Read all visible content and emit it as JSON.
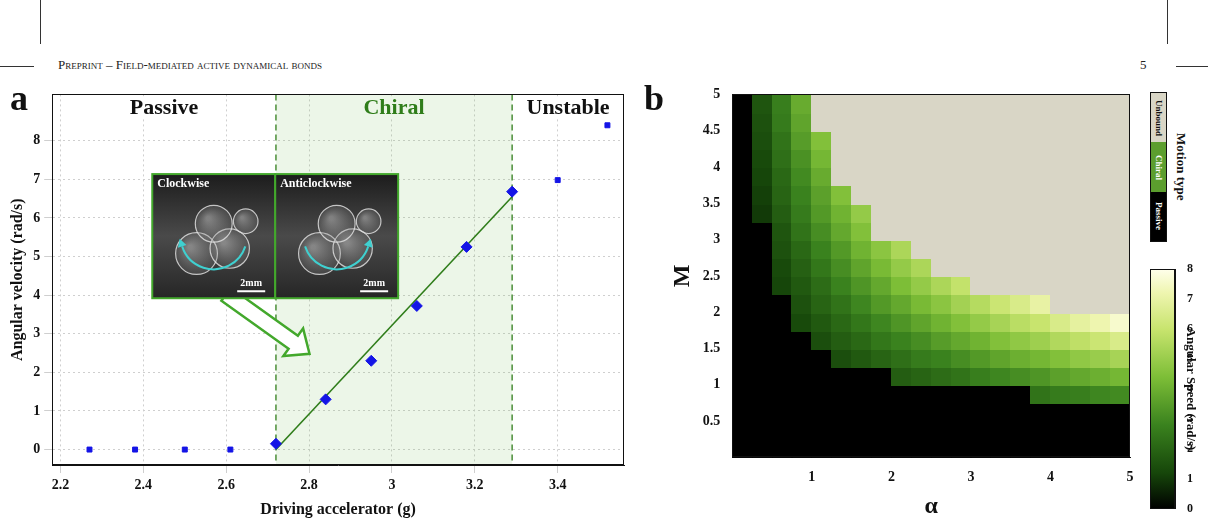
{
  "header": {
    "title": "Preprint – Field-mediated active dynamical bonds",
    "page": 5
  },
  "chart_data": [
    {
      "panel": "a",
      "type": "scatter",
      "x_label": "Driving accelerator (g)",
      "y_label": "Angular velocity (rad/s)",
      "xlim": [
        2.18,
        3.56
      ],
      "xticks": [
        2.2,
        2.4,
        2.6,
        2.8,
        3,
        3.2,
        3.4
      ],
      "ylim": [
        -0.4,
        9.2
      ],
      "yticks": [
        0,
        1,
        2,
        3,
        4,
        5,
        6,
        7,
        8
      ],
      "grid": true,
      "series": [
        {
          "type": "scatter",
          "marker": "square",
          "color": "#1414e6",
          "x": [
            2.27,
            2.38,
            2.5,
            2.61
          ],
          "values": [
            0,
            0,
            0,
            0
          ]
        },
        {
          "type": "scatter",
          "marker": "diamond",
          "color": "#1414e6",
          "x": [
            2.72,
            2.84,
            2.95,
            3.06,
            3.18,
            3.29
          ],
          "values": [
            0.15,
            1.3,
            2.3,
            3.72,
            5.25,
            6.68
          ]
        },
        {
          "type": "scatter",
          "marker": "square",
          "color": "#1414e6",
          "x": [
            3.4,
            3.52
          ],
          "values": [
            6.98,
            8.4
          ]
        },
        {
          "type": "line",
          "color": "#2f7d1a",
          "x": [
            2.72,
            3.29
          ],
          "values": [
            0,
            6.55
          ]
        }
      ],
      "regions": {
        "labels": [
          "Passive",
          "Chiral",
          "Unstable"
        ],
        "bounds": [
          2.72,
          3.29
        ],
        "colors": [
          "#111111",
          "#2f7d1a",
          "#111111"
        ]
      },
      "inset": {
        "panels": [
          {
            "title": "Clockwise",
            "scale": "2mm"
          },
          {
            "title": "Anticlockwise",
            "scale": "2mm"
          }
        ]
      }
    },
    {
      "panel": "b",
      "type": "heatmap",
      "x_label": "α",
      "y_label": "M",
      "xlim": [
        0,
        5
      ],
      "xticks": [
        1,
        2,
        3,
        4,
        5
      ],
      "ylim": [
        0,
        5
      ],
      "yticks": [
        0.5,
        1,
        1.5,
        2,
        2.5,
        3,
        3.5,
        4,
        4.5,
        5
      ],
      "grid": false,
      "x": [
        0.125,
        0.375,
        0.625,
        0.875,
        1.125,
        1.375,
        1.625,
        1.875,
        2.125,
        2.375,
        2.625,
        2.875,
        3.125,
        3.375,
        3.625,
        3.875,
        4.125,
        4.375,
        4.625,
        4.875
      ],
      "y": [
        0.125,
        0.375,
        0.625,
        0.875,
        1.125,
        1.375,
        1.625,
        1.875,
        2.125,
        2.375,
        2.625,
        2.875,
        3.125,
        3.375,
        3.625,
        3.875,
        4.125,
        4.375,
        4.625,
        4.875
      ],
      "cells": [
        [
          0,
          0,
          0,
          0,
          0,
          0,
          0,
          0,
          0,
          0,
          0,
          0,
          0,
          0,
          0,
          0,
          0,
          0,
          0,
          0
        ],
        [
          0,
          0,
          0,
          0,
          0,
          0,
          0,
          0,
          0,
          0,
          0,
          0,
          0,
          0,
          0,
          0,
          0,
          0,
          0,
          0
        ],
        [
          0,
          0,
          0,
          0,
          0,
          0,
          0,
          0,
          0,
          0,
          0,
          0,
          0,
          0,
          0,
          0,
          0,
          0,
          0,
          0
        ],
        [
          0,
          0,
          0,
          0,
          0,
          0,
          0,
          0,
          0,
          0,
          0,
          0,
          0,
          0,
          0,
          2.4,
          2.6,
          2.7,
          2.9,
          3.0
        ],
        [
          0,
          0,
          0,
          0,
          0,
          0,
          0,
          0,
          1.8,
          2.0,
          2.2,
          2.4,
          2.7,
          2.9,
          3.1,
          3.3,
          3.6,
          3.8,
          4.0,
          4.2
        ],
        [
          0,
          0,
          0,
          0,
          0,
          1.4,
          1.7,
          2.0,
          2.3,
          2.6,
          2.8,
          3.1,
          3.4,
          3.7,
          4.0,
          4.2,
          4.5,
          4.8,
          5.0,
          5.3
        ],
        [
          0,
          0,
          0,
          0,
          1.4,
          1.8,
          2.1,
          2.5,
          2.8,
          3.1,
          3.5,
          3.8,
          4.1,
          4.5,
          4.8,
          5.1,
          5.5,
          5.8,
          6.1,
          6.5
        ],
        [
          0,
          0,
          0,
          1.3,
          1.7,
          2.1,
          2.5,
          2.9,
          3.3,
          3.7,
          4.1,
          4.5,
          4.9,
          5.3,
          5.7,
          6.0,
          6.5,
          6.9,
          7.2,
          7.6
        ],
        [
          0,
          0,
          0,
          1.5,
          2.0,
          2.4,
          2.9,
          3.4,
          3.8,
          4.3,
          4.7,
          5.2,
          5.6,
          6.1,
          6.5,
          7.0,
          null,
          null,
          null,
          null
        ],
        [
          0,
          0,
          1.2,
          1.7,
          2.2,
          2.8,
          3.3,
          3.8,
          4.4,
          4.9,
          5.4,
          5.9,
          null,
          null,
          null,
          null,
          null,
          null,
          null,
          null
        ],
        [
          0,
          0,
          1.3,
          1.9,
          2.5,
          3.1,
          3.7,
          4.3,
          4.9,
          5.4,
          null,
          null,
          null,
          null,
          null,
          null,
          null,
          null,
          null,
          null
        ],
        [
          0,
          0,
          1.5,
          2.1,
          2.8,
          3.4,
          4.1,
          4.7,
          5.4,
          null,
          null,
          null,
          null,
          null,
          null,
          null,
          null,
          null,
          null,
          null
        ],
        [
          0,
          0,
          1.6,
          2.4,
          3.1,
          3.8,
          4.5,
          null,
          null,
          null,
          null,
          null,
          null,
          null,
          null,
          null,
          null,
          null,
          null,
          null
        ],
        [
          0,
          1.0,
          1.8,
          2.6,
          3.4,
          4.1,
          4.9,
          null,
          null,
          null,
          null,
          null,
          null,
          null,
          null,
          null,
          null,
          null,
          null,
          null
        ],
        [
          0,
          1.1,
          2.0,
          2.8,
          3.6,
          4.5,
          null,
          null,
          null,
          null,
          null,
          null,
          null,
          null,
          null,
          null,
          null,
          null,
          null,
          null
        ],
        [
          0,
          1.2,
          2.1,
          3.0,
          3.9,
          null,
          null,
          null,
          null,
          null,
          null,
          null,
          null,
          null,
          null,
          null,
          null,
          null,
          null,
          null
        ],
        [
          0,
          1.3,
          2.3,
          3.2,
          4.2,
          null,
          null,
          null,
          null,
          null,
          null,
          null,
          null,
          null,
          null,
          null,
          null,
          null,
          null,
          null
        ],
        [
          0,
          1.4,
          2.4,
          3.5,
          4.5,
          null,
          null,
          null,
          null,
          null,
          null,
          null,
          null,
          null,
          null,
          null,
          null,
          null,
          null,
          null
        ],
        [
          0,
          1.5,
          2.6,
          3.7,
          null,
          null,
          null,
          null,
          null,
          null,
          null,
          null,
          null,
          null,
          null,
          null,
          null,
          null,
          null,
          null
        ],
        [
          0,
          1.6,
          2.7,
          3.9,
          null,
          null,
          null,
          null,
          null,
          null,
          null,
          null,
          null,
          null,
          null,
          null,
          null,
          null,
          null,
          null
        ]
      ],
      "colorbar": {
        "label": "Angular Speed (rad/s)",
        "range": [
          0,
          8
        ],
        "ticks": [
          0,
          1,
          2,
          3,
          4,
          5,
          6,
          7,
          8
        ]
      },
      "motion_types": {
        "label": "Motion type",
        "categories": [
          "Passive",
          "Chiral",
          "Unbound"
        ],
        "colors": [
          "#000000",
          "#5c9e2e",
          "#d9d6c6"
        ]
      }
    }
  ]
}
